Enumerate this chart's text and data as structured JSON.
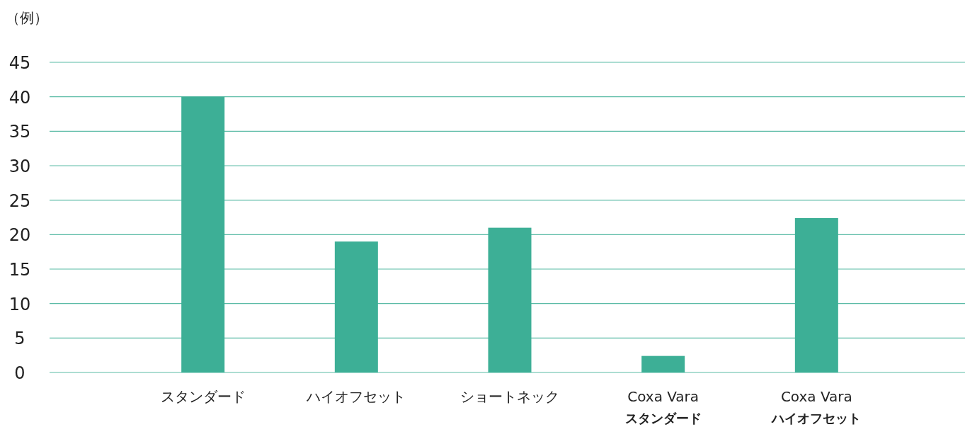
{
  "chart_data": {
    "type": "bar",
    "ylabel": "（例）",
    "categories": [
      "スタンダード",
      "ハイオフセット",
      "ショートネック",
      "Coxa Vara\nスタンダード",
      "Coxa Vara\nハイオフセット"
    ],
    "values": [
      40,
      19,
      21,
      2.4,
      22.4
    ],
    "color": "#3daf96",
    "ylim": [
      0,
      45
    ],
    "yticks": [
      0,
      5,
      10,
      15,
      20,
      25,
      30,
      35,
      40,
      45
    ],
    "grid": "y"
  }
}
